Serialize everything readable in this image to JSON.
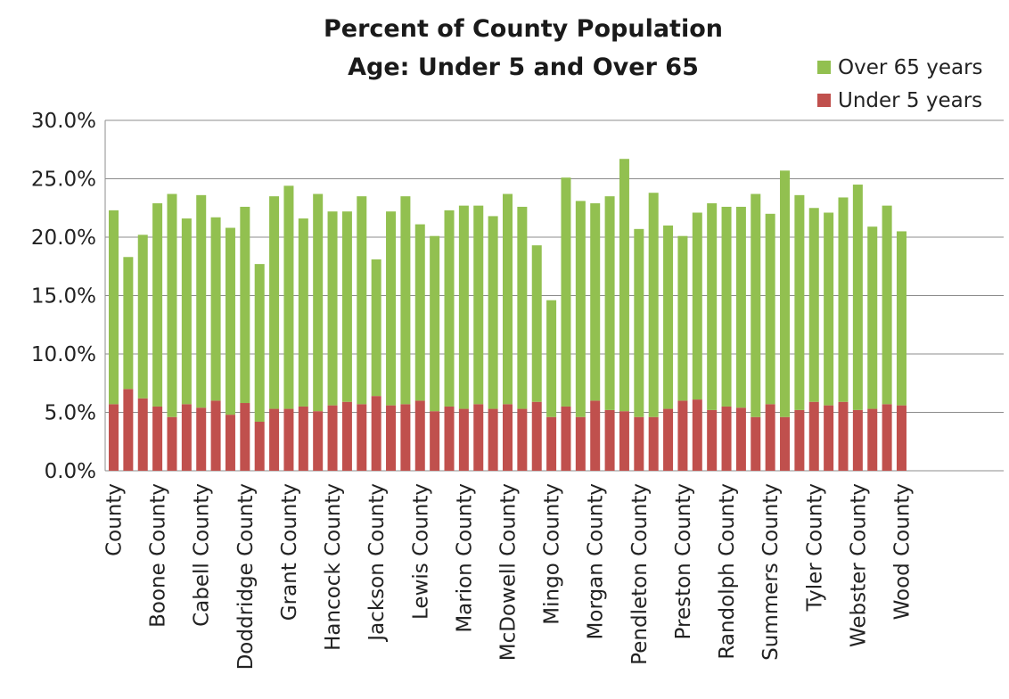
{
  "chart_data": {
    "type": "bar",
    "stacked": true,
    "title": "Percent of County Population",
    "subtitle": "Age: Under 5 and Over 65",
    "xlabel": "",
    "ylabel": "",
    "ylim": [
      0,
      30
    ],
    "yticks": [
      "0.0%",
      "5.0%",
      "10.0%",
      "15.0%",
      "20.0%",
      "25.0%",
      "30.0%"
    ],
    "grid": true,
    "legend_position": "top-right",
    "colors": {
      "over65": "#92c050",
      "under5": "#c0504d"
    },
    "categories_labeled": [
      "County",
      "Boone County",
      "Cabell County",
      "Doddridge County",
      "Grant County",
      "Hancock County",
      "Jackson County",
      "Lewis County",
      "Marion County",
      "McDowell County",
      "Mingo County",
      "Morgan County",
      "Pendleton County",
      "Preston County",
      "Randolph County",
      "Summers County",
      "Tyler County",
      "Webster County",
      "Wood County"
    ],
    "series": [
      {
        "name": "Under 5 years",
        "values": [
          5.7,
          7.0,
          6.2,
          5.5,
          4.6,
          5.7,
          5.4,
          6.0,
          4.8,
          5.8,
          4.2,
          5.3,
          5.3,
          5.5,
          5.1,
          5.6,
          5.9,
          5.7,
          6.4,
          5.6,
          5.7,
          6.0,
          5.1,
          5.5,
          5.3,
          5.7,
          5.3,
          5.7,
          5.3,
          5.9,
          4.6,
          5.5,
          4.6,
          6.0,
          5.2,
          5.1,
          4.6,
          4.6,
          5.3,
          6.0,
          6.1,
          5.2,
          5.5,
          5.4,
          4.6,
          5.7,
          4.6,
          5.2,
          5.9,
          5.6,
          5.9,
          5.2,
          5.3,
          5.7,
          5.6
        ]
      },
      {
        "name": "Over 65 years",
        "values": [
          16.6,
          11.3,
          14.0,
          17.4,
          19.1,
          15.9,
          18.2,
          15.7,
          16.0,
          16.8,
          13.5,
          18.2,
          19.1,
          16.1,
          18.6,
          16.6,
          16.3,
          17.8,
          11.7,
          16.6,
          17.8,
          15.1,
          15.0,
          16.8,
          17.4,
          17.0,
          16.5,
          18.0,
          17.3,
          13.4,
          10.0,
          19.6,
          18.5,
          16.9,
          18.3,
          21.6,
          16.1,
          19.2,
          15.7,
          14.1,
          16.0,
          17.7,
          17.1,
          17.2,
          19.1,
          16.3,
          21.1,
          18.4,
          16.6,
          16.5,
          17.5,
          19.3,
          15.6,
          17.0,
          14.9
        ]
      }
    ]
  }
}
